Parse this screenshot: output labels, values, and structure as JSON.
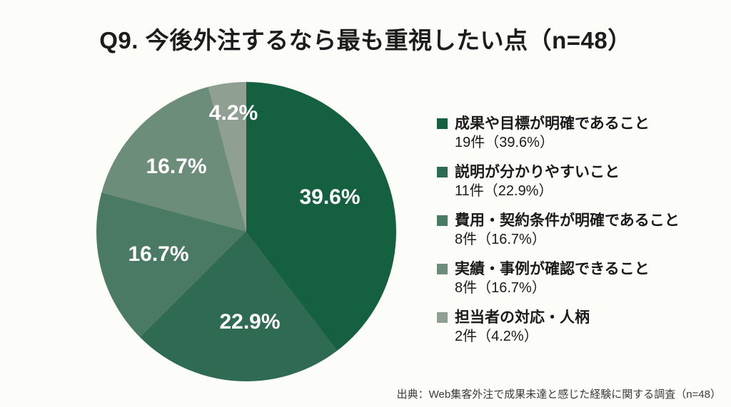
{
  "page": {
    "title": "Q9. 今後外注するなら最も重視したい点（n=48）",
    "source": "出典：Web集客外注で成果未達と感じた経験に関する調査（n=48）",
    "background_color": "#fcfcf9",
    "title_color": "#1c1c1c"
  },
  "chart_data": {
    "type": "pie",
    "title": "Q9. 今後外注するなら最も重視したい点（n=48）",
    "n": 48,
    "start_angle_deg": 0,
    "direction": "clockwise",
    "legend_position": "right",
    "slice_label_color": "#ffffff",
    "slices": [
      {
        "label": "成果や目標が明確であること",
        "count": 19,
        "percent": 39.6,
        "percent_label": "39.6%",
        "count_label": "19件（39.6%）",
        "color": "#156040"
      },
      {
        "label": "説明が分かりやすいこと",
        "count": 11,
        "percent": 22.9,
        "percent_label": "22.9%",
        "count_label": "11件（22.9%）",
        "color": "#2E6B52"
      },
      {
        "label": "費用・契約条件が明確であること",
        "count": 8,
        "percent": 16.7,
        "percent_label": "16.7%",
        "count_label": "8件（16.7%）",
        "color": "#4A7A63"
      },
      {
        "label": "実績・事例が確認できること",
        "count": 8,
        "percent": 16.7,
        "percent_label": "16.7%",
        "count_label": "8件（16.7%）",
        "color": "#6D8D7B"
      },
      {
        "label": "担当者の対応・人柄",
        "count": 2,
        "percent": 4.2,
        "percent_label": "4.2%",
        "count_label": "2件（4.2%）",
        "color": "#8F9F92"
      }
    ]
  }
}
